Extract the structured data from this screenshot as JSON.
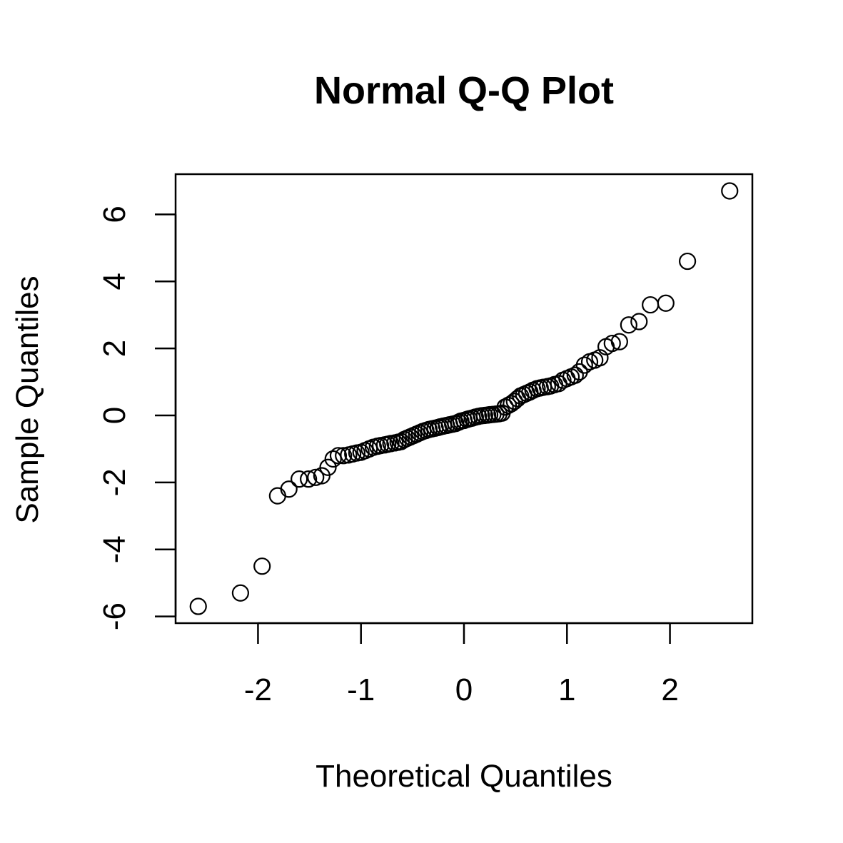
{
  "chart_data": {
    "type": "scatter",
    "title": "Normal Q-Q Plot",
    "xlabel": "Theoretical Quantiles",
    "ylabel": "Sample Quantiles",
    "xlim": [
      -2.8,
      2.8
    ],
    "ylim": [
      -6.2,
      7.2
    ],
    "x_ticks": [
      -2,
      -1,
      0,
      1,
      2
    ],
    "x_tick_labels": [
      "-2",
      "-1",
      "0",
      "1",
      "2"
    ],
    "y_ticks": [
      -6,
      -4,
      -2,
      0,
      2,
      4,
      6
    ],
    "y_tick_labels": [
      "-6",
      "-4",
      "-2",
      "0",
      "2",
      "4",
      "6"
    ],
    "grid": false,
    "legend": "none",
    "marker": "open-circle",
    "points": [
      {
        "x": -2.58,
        "y": -5.7
      },
      {
        "x": -2.17,
        "y": -5.3
      },
      {
        "x": -1.96,
        "y": -4.5
      },
      {
        "x": -1.81,
        "y": -2.4
      },
      {
        "x": -1.7,
        "y": -2.2
      },
      {
        "x": -1.6,
        "y": -1.9
      },
      {
        "x": -1.51,
        "y": -1.9
      },
      {
        "x": -1.44,
        "y": -1.85
      },
      {
        "x": -1.38,
        "y": -1.8
      },
      {
        "x": -1.32,
        "y": -1.55
      },
      {
        "x": -1.27,
        "y": -1.3
      },
      {
        "x": -1.22,
        "y": -1.2
      },
      {
        "x": -1.17,
        "y": -1.2
      },
      {
        "x": -1.12,
        "y": -1.18
      },
      {
        "x": -1.08,
        "y": -1.15
      },
      {
        "x": -1.04,
        "y": -1.12
      },
      {
        "x": -1.0,
        "y": -1.1
      },
      {
        "x": -0.96,
        "y": -1.05
      },
      {
        "x": -0.92,
        "y": -1.0
      },
      {
        "x": -0.88,
        "y": -0.95
      },
      {
        "x": -0.84,
        "y": -0.92
      },
      {
        "x": -0.81,
        "y": -0.9
      },
      {
        "x": -0.77,
        "y": -0.88
      },
      {
        "x": -0.74,
        "y": -0.86
      },
      {
        "x": -0.71,
        "y": -0.84
      },
      {
        "x": -0.67,
        "y": -0.82
      },
      {
        "x": -0.64,
        "y": -0.8
      },
      {
        "x": -0.61,
        "y": -0.78
      },
      {
        "x": -0.58,
        "y": -0.72
      },
      {
        "x": -0.55,
        "y": -0.68
      },
      {
        "x": -0.52,
        "y": -0.64
      },
      {
        "x": -0.49,
        "y": -0.6
      },
      {
        "x": -0.46,
        "y": -0.56
      },
      {
        "x": -0.43,
        "y": -0.52
      },
      {
        "x": -0.4,
        "y": -0.48
      },
      {
        "x": -0.37,
        "y": -0.45
      },
      {
        "x": -0.34,
        "y": -0.42
      },
      {
        "x": -0.31,
        "y": -0.4
      },
      {
        "x": -0.28,
        "y": -0.38
      },
      {
        "x": -0.25,
        "y": -0.36
      },
      {
        "x": -0.23,
        "y": -0.34
      },
      {
        "x": -0.2,
        "y": -0.32
      },
      {
        "x": -0.17,
        "y": -0.3
      },
      {
        "x": -0.14,
        "y": -0.28
      },
      {
        "x": -0.11,
        "y": -0.26
      },
      {
        "x": -0.08,
        "y": -0.24
      },
      {
        "x": -0.05,
        "y": -0.2
      },
      {
        "x": -0.03,
        "y": -0.17
      },
      {
        "x": 0.0,
        "y": -0.15
      },
      {
        "x": 0.03,
        "y": -0.12
      },
      {
        "x": 0.05,
        "y": -0.1
      },
      {
        "x": 0.08,
        "y": -0.08
      },
      {
        "x": 0.11,
        "y": -0.05
      },
      {
        "x": 0.14,
        "y": -0.03
      },
      {
        "x": 0.17,
        "y": -0.01
      },
      {
        "x": 0.2,
        "y": 0.0
      },
      {
        "x": 0.23,
        "y": 0.01
      },
      {
        "x": 0.25,
        "y": 0.02
      },
      {
        "x": 0.28,
        "y": 0.03
      },
      {
        "x": 0.31,
        "y": 0.04
      },
      {
        "x": 0.34,
        "y": 0.05
      },
      {
        "x": 0.37,
        "y": 0.07
      },
      {
        "x": 0.4,
        "y": 0.25
      },
      {
        "x": 0.43,
        "y": 0.3
      },
      {
        "x": 0.46,
        "y": 0.35
      },
      {
        "x": 0.49,
        "y": 0.42
      },
      {
        "x": 0.52,
        "y": 0.5
      },
      {
        "x": 0.55,
        "y": 0.58
      },
      {
        "x": 0.58,
        "y": 0.62
      },
      {
        "x": 0.61,
        "y": 0.66
      },
      {
        "x": 0.64,
        "y": 0.7
      },
      {
        "x": 0.67,
        "y": 0.75
      },
      {
        "x": 0.71,
        "y": 0.8
      },
      {
        "x": 0.74,
        "y": 0.82
      },
      {
        "x": 0.77,
        "y": 0.84
      },
      {
        "x": 0.81,
        "y": 0.86
      },
      {
        "x": 0.84,
        "y": 0.88
      },
      {
        "x": 0.88,
        "y": 0.92
      },
      {
        "x": 0.92,
        "y": 0.95
      },
      {
        "x": 0.96,
        "y": 1.05
      },
      {
        "x": 1.0,
        "y": 1.1
      },
      {
        "x": 1.04,
        "y": 1.15
      },
      {
        "x": 1.08,
        "y": 1.2
      },
      {
        "x": 1.12,
        "y": 1.3
      },
      {
        "x": 1.17,
        "y": 1.5
      },
      {
        "x": 1.22,
        "y": 1.6
      },
      {
        "x": 1.27,
        "y": 1.65
      },
      {
        "x": 1.32,
        "y": 1.72
      },
      {
        "x": 1.38,
        "y": 2.05
      },
      {
        "x": 1.44,
        "y": 2.15
      },
      {
        "x": 1.51,
        "y": 2.2
      },
      {
        "x": 1.6,
        "y": 2.7
      },
      {
        "x": 1.7,
        "y": 2.8
      },
      {
        "x": 1.81,
        "y": 3.3
      },
      {
        "x": 1.96,
        "y": 3.35
      },
      {
        "x": 2.17,
        "y": 4.6
      },
      {
        "x": 2.58,
        "y": 6.7
      }
    ]
  }
}
